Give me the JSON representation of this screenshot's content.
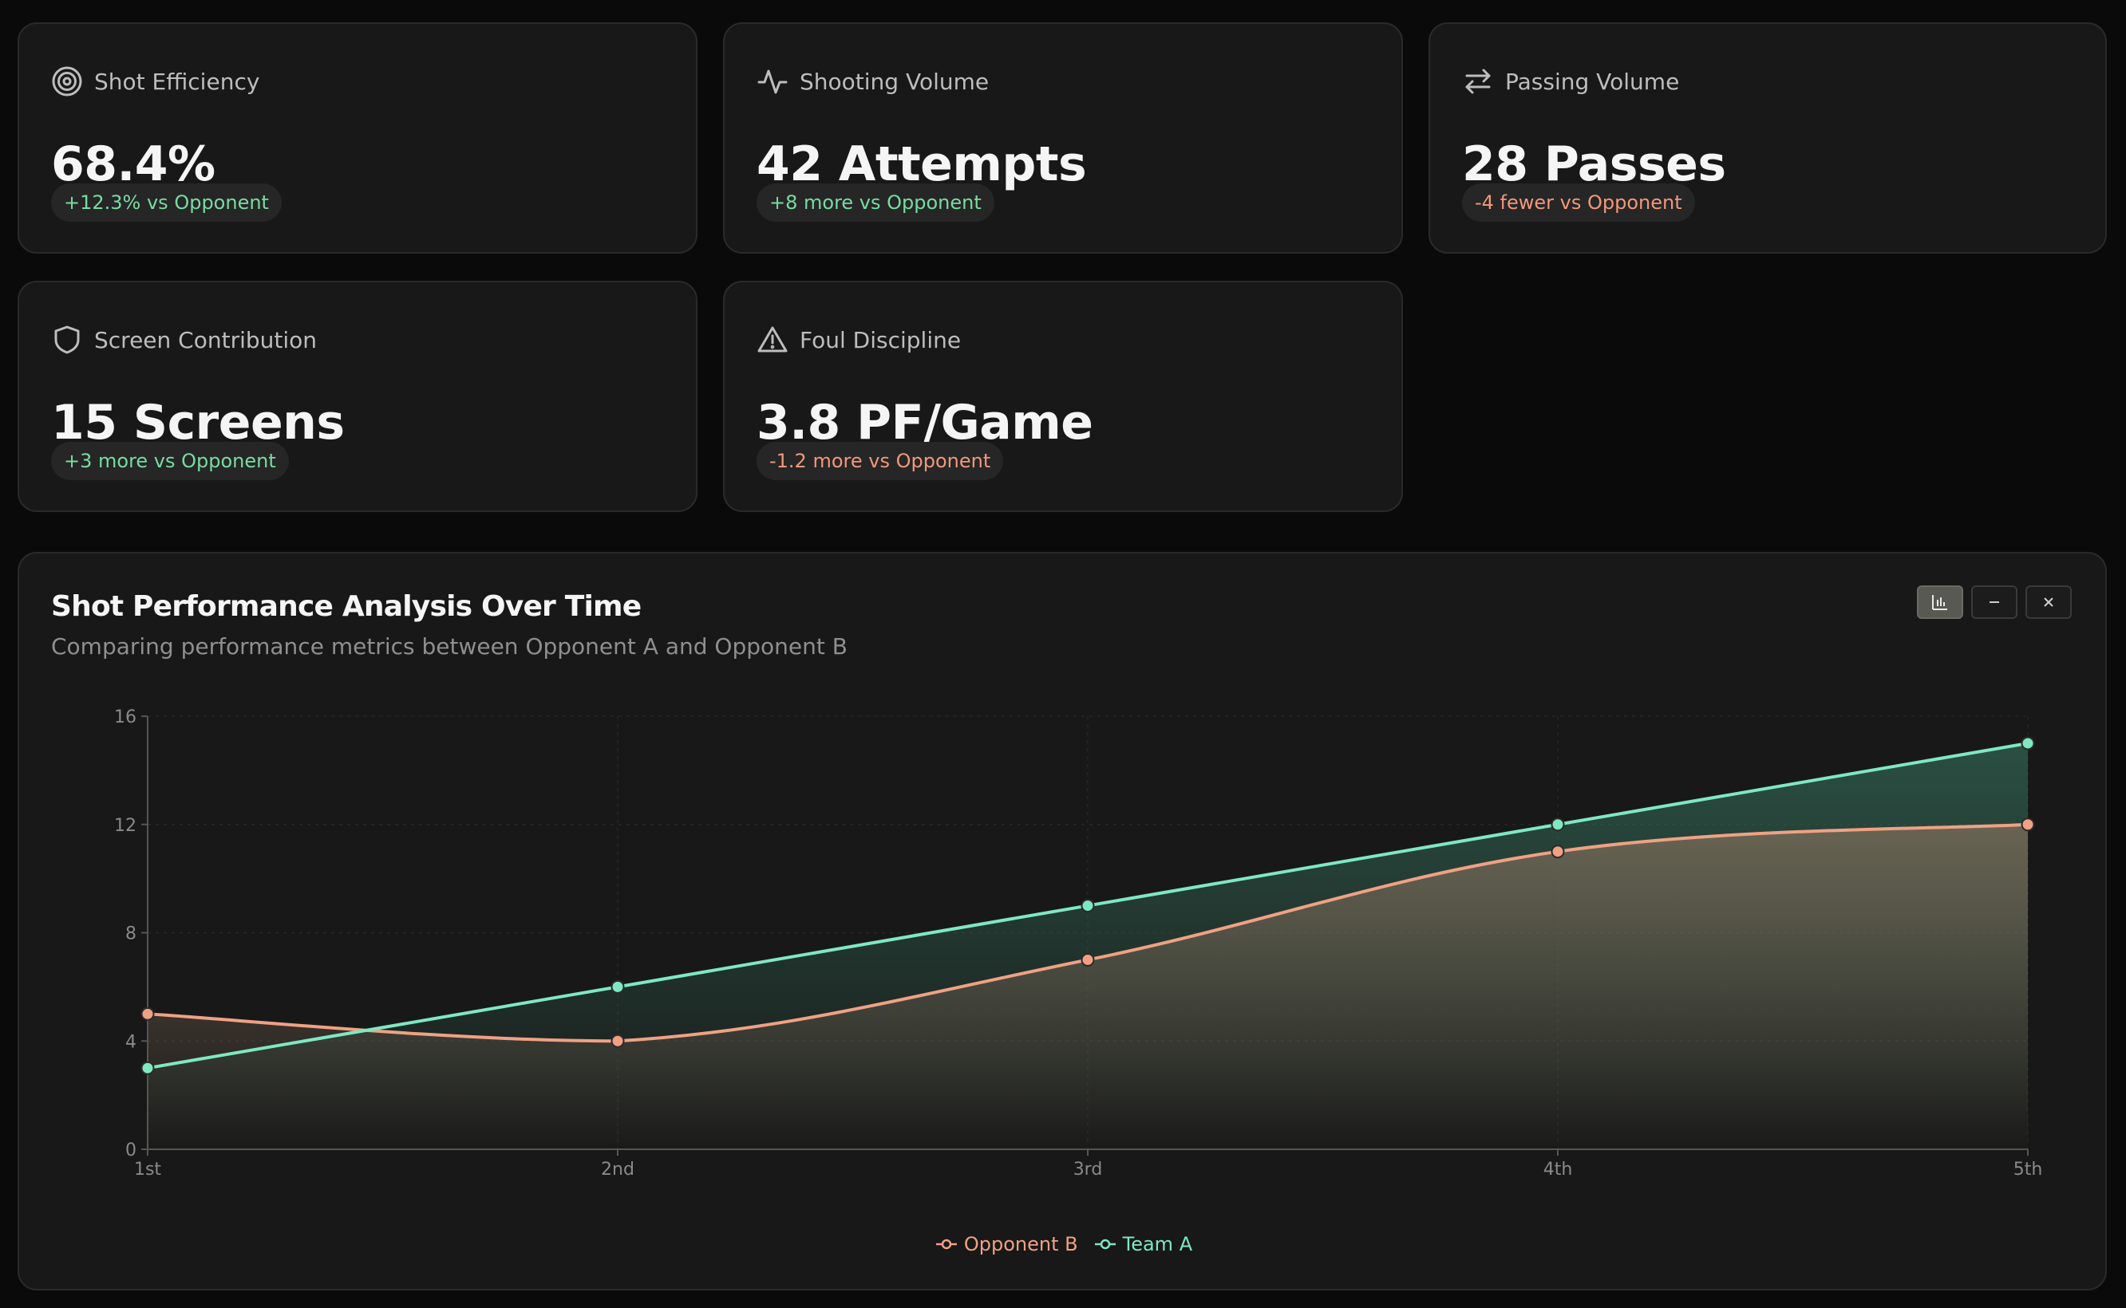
{
  "stats": [
    {
      "title": "Shot Efficiency",
      "value": "68.4%",
      "delta": "+12.3% vs Opponent",
      "trend": "positive",
      "icon": "target-icon"
    },
    {
      "title": "Shooting Volume",
      "value": "42 Attempts",
      "delta": "+8 more vs Opponent",
      "trend": "positive",
      "icon": "activity-icon"
    },
    {
      "title": "Passing Volume",
      "value": "28 Passes",
      "delta": "-4 fewer vs Opponent",
      "trend": "negative",
      "icon": "arrows-exchange-icon"
    },
    {
      "title": "Screen Contribution",
      "value": "15 Screens",
      "delta": "+3 more vs Opponent",
      "trend": "positive",
      "icon": "shield-icon"
    },
    {
      "title": "Foul Discipline",
      "value": "3.8 PF/Game",
      "delta": "-1.2 more vs Opponent",
      "trend": "negative",
      "icon": "warning-triangle-icon"
    }
  ],
  "chart": {
    "controls": [
      {
        "icon": "bar-chart-icon",
        "active": true
      },
      {
        "icon": "minimize-icon",
        "active": false
      },
      {
        "icon": "close-icon",
        "active": false
      }
    ]
  },
  "colors": {
    "positive": "#79dba1",
    "negative": "#f0987c",
    "team_a": "#7ee8c2",
    "opponent_b": "#f0a184"
  },
  "chart_data": {
    "type": "area",
    "title": "Shot Performance Analysis Over Time",
    "subtitle": "Comparing performance metrics between Opponent A and Opponent B",
    "categories": [
      "1st",
      "2nd",
      "3rd",
      "4th",
      "5th"
    ],
    "series": [
      {
        "name": "Opponent B",
        "values": [
          5,
          4,
          7,
          11,
          12
        ],
        "color": "#f0a184"
      },
      {
        "name": "Team A",
        "values": [
          3,
          6,
          9,
          12,
          15
        ],
        "color": "#7ee8c2"
      }
    ],
    "yticks": [
      0,
      4,
      8,
      12,
      16
    ],
    "ylim": [
      0,
      16
    ],
    "xlabel": "",
    "ylabel": "",
    "grid": true,
    "legend": "bottom-center"
  }
}
